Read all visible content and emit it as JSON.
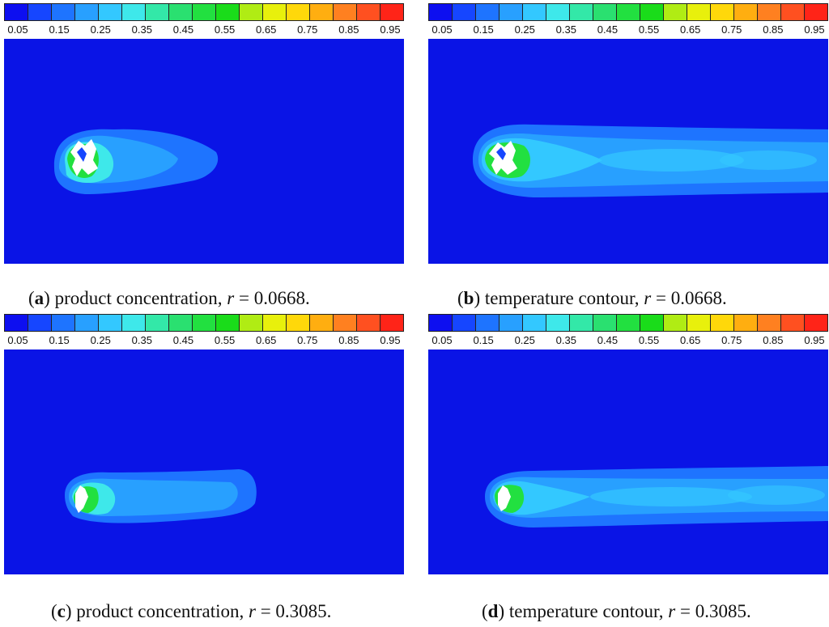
{
  "legend": {
    "ticks": [
      "0.05",
      "0.15",
      "0.25",
      "0.35",
      "0.45",
      "0.55",
      "0.65",
      "0.75",
      "0.85",
      "0.95"
    ],
    "colors": [
      "#0d0ff0",
      "#1646ff",
      "#1e74ff",
      "#28a0ff",
      "#33c8ff",
      "#3ee8ea",
      "#33e8a8",
      "#2ae070",
      "#22e040",
      "#1adc1a",
      "#b0ec14",
      "#e8f00c",
      "#ffd80a",
      "#ffae10",
      "#ff8020",
      "#ff5020",
      "#ff2418"
    ]
  },
  "panels": [
    {
      "letter": "a",
      "pre": "(",
      "post": ") product concentration, ",
      "var": "r",
      "value": " = 0.0668."
    },
    {
      "letter": "b",
      "pre": "(",
      "post": ") temperature contour, ",
      "var": "r",
      "value": " = 0.0668."
    },
    {
      "letter": "c",
      "pre": "(",
      "post": ") product concentration, ",
      "var": "r",
      "value": " = 0.3085."
    },
    {
      "letter": "d",
      "pre": "(",
      "post": ") temperature contour, ",
      "var": "r",
      "value": " = 0.3085."
    }
  ],
  "chart_data": [
    {
      "type": "heatmap",
      "panel": "a",
      "title": "(a) product concentration, r = 0.0668.",
      "colorbar_range": [
        0.05,
        0.95
      ],
      "colorbar_ticks": [
        0.05,
        0.15,
        0.25,
        0.35,
        0.45,
        0.55,
        0.65,
        0.75,
        0.85,
        0.95
      ],
      "background_value": 0.05
    },
    {
      "type": "heatmap",
      "panel": "b",
      "title": "(b) temperature contour, r = 0.0668.",
      "colorbar_range": [
        0.05,
        0.95
      ],
      "colorbar_ticks": [
        0.05,
        0.15,
        0.25,
        0.35,
        0.45,
        0.55,
        0.65,
        0.75,
        0.85,
        0.95
      ],
      "background_value": 0.05
    },
    {
      "type": "heatmap",
      "panel": "c",
      "title": "(c) product concentration, r = 0.3085.",
      "colorbar_range": [
        0.05,
        0.95
      ],
      "colorbar_ticks": [
        0.05,
        0.15,
        0.25,
        0.35,
        0.45,
        0.55,
        0.65,
        0.75,
        0.85,
        0.95
      ],
      "background_value": 0.05
    },
    {
      "type": "heatmap",
      "panel": "d",
      "title": "(d) temperature contour, r = 0.3085.",
      "colorbar_range": [
        0.05,
        0.95
      ],
      "colorbar_ticks": [
        0.05,
        0.15,
        0.25,
        0.35,
        0.45,
        0.55,
        0.65,
        0.75,
        0.85,
        0.95
      ],
      "background_value": 0.05
    }
  ]
}
